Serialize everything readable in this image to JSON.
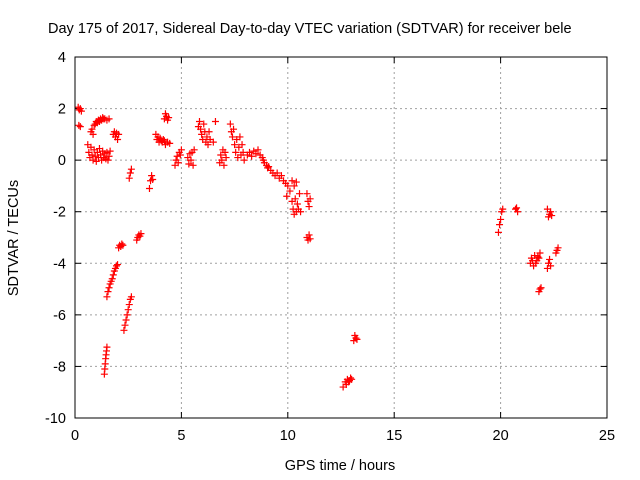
{
  "chart_data": {
    "type": "scatter",
    "title": "Day 175 of 2017, Sidereal Day-to-day VTEC variation (SDTVAR) for receiver bele",
    "xlabel": "GPS time / hours",
    "ylabel": "SDTVAR / TECUs",
    "xlim": [
      0,
      25
    ],
    "ylim": [
      -10,
      4
    ],
    "xticks": [
      0,
      5,
      10,
      15,
      20,
      25
    ],
    "yticks": [
      -10,
      -8,
      -6,
      -4,
      -2,
      0,
      2,
      4
    ],
    "grid": true,
    "marker": "+",
    "color": "#ff0000",
    "series": [
      {
        "name": "SDTVAR",
        "points": [
          [
            0.15,
            2.05
          ],
          [
            0.2,
            1.95
          ],
          [
            0.25,
            2.0
          ],
          [
            0.3,
            1.9
          ],
          [
            0.18,
            1.35
          ],
          [
            0.25,
            1.3
          ],
          [
            0.6,
            0.6
          ],
          [
            0.65,
            0.3
          ],
          [
            0.7,
            0.1
          ],
          [
            0.75,
            0.5
          ],
          [
            0.8,
            0.2
          ],
          [
            0.85,
            0.0
          ],
          [
            0.9,
            0.4
          ],
          [
            0.95,
            0.15
          ],
          [
            1.0,
            -0.05
          ],
          [
            1.05,
            0.3
          ],
          [
            1.1,
            0.1
          ],
          [
            1.15,
            0.45
          ],
          [
            1.2,
            0.2
          ],
          [
            1.25,
            0.0
          ],
          [
            1.3,
            0.35
          ],
          [
            1.35,
            0.1
          ],
          [
            1.4,
            0.25
          ],
          [
            1.45,
            0.05
          ],
          [
            1.5,
            0.3
          ],
          [
            1.55,
            0.0
          ],
          [
            1.6,
            0.15
          ],
          [
            1.65,
            0.35
          ],
          [
            0.75,
            1.1
          ],
          [
            0.8,
            1.2
          ],
          [
            0.85,
            1.0
          ],
          [
            0.9,
            1.35
          ],
          [
            0.95,
            1.4
          ],
          [
            1.0,
            1.5
          ],
          [
            1.05,
            1.45
          ],
          [
            1.1,
            1.55
          ],
          [
            1.15,
            1.5
          ],
          [
            1.2,
            1.6
          ],
          [
            1.25,
            1.55
          ],
          [
            1.3,
            1.65
          ],
          [
            1.35,
            1.6
          ],
          [
            1.4,
            1.6
          ],
          [
            1.5,
            1.55
          ],
          [
            1.6,
            1.6
          ],
          [
            1.38,
            -8.3
          ],
          [
            1.4,
            -8.1
          ],
          [
            1.42,
            -7.9
          ],
          [
            1.44,
            -7.7
          ],
          [
            1.46,
            -7.55
          ],
          [
            1.48,
            -7.4
          ],
          [
            1.5,
            -7.25
          ],
          [
            1.5,
            -5.3
          ],
          [
            1.55,
            -5.1
          ],
          [
            1.6,
            -4.95
          ],
          [
            1.65,
            -4.8
          ],
          [
            1.7,
            -4.7
          ],
          [
            1.75,
            -4.6
          ],
          [
            1.8,
            -4.45
          ],
          [
            1.85,
            -4.3
          ],
          [
            1.9,
            -4.2
          ],
          [
            1.95,
            -4.1
          ],
          [
            2.0,
            -4.05
          ],
          [
            1.8,
            1.0
          ],
          [
            1.85,
            1.1
          ],
          [
            1.9,
            0.9
          ],
          [
            1.95,
            1.05
          ],
          [
            2.0,
            0.8
          ],
          [
            2.05,
            1.0
          ],
          [
            2.05,
            -3.4
          ],
          [
            2.1,
            -3.3
          ],
          [
            2.15,
            -3.35
          ],
          [
            2.2,
            -3.25
          ],
          [
            2.25,
            -3.3
          ],
          [
            2.3,
            -6.6
          ],
          [
            2.35,
            -6.4
          ],
          [
            2.4,
            -6.2
          ],
          [
            2.45,
            -6.0
          ],
          [
            2.5,
            -5.8
          ],
          [
            2.55,
            -5.6
          ],
          [
            2.6,
            -5.4
          ],
          [
            2.65,
            -5.3
          ],
          [
            2.55,
            -0.7
          ],
          [
            2.6,
            -0.5
          ],
          [
            2.65,
            -0.35
          ],
          [
            2.9,
            -3.1
          ],
          [
            2.95,
            -3.0
          ],
          [
            3.0,
            -2.9
          ],
          [
            3.05,
            -2.95
          ],
          [
            3.1,
            -2.85
          ],
          [
            3.5,
            -1.1
          ],
          [
            3.55,
            -0.8
          ],
          [
            3.6,
            -0.6
          ],
          [
            3.65,
            -0.75
          ],
          [
            3.8,
            1.0
          ],
          [
            3.85,
            0.8
          ],
          [
            3.9,
            0.9
          ],
          [
            3.95,
            0.7
          ],
          [
            4.0,
            0.85
          ],
          [
            4.05,
            0.75
          ],
          [
            4.1,
            0.7
          ],
          [
            4.15,
            0.8
          ],
          [
            4.2,
            0.75
          ],
          [
            4.25,
            0.6
          ],
          [
            4.35,
            0.7
          ],
          [
            4.45,
            0.65
          ],
          [
            4.2,
            1.6
          ],
          [
            4.25,
            1.8
          ],
          [
            4.3,
            1.7
          ],
          [
            4.35,
            1.55
          ],
          [
            4.4,
            1.65
          ],
          [
            4.7,
            -0.2
          ],
          [
            4.75,
            0.0
          ],
          [
            4.8,
            0.15
          ],
          [
            4.85,
            -0.1
          ],
          [
            4.9,
            0.3
          ],
          [
            4.95,
            0.2
          ],
          [
            5.0,
            0.4
          ],
          [
            5.3,
            0.1
          ],
          [
            5.35,
            -0.15
          ],
          [
            5.4,
            0.25
          ],
          [
            5.45,
            0.0
          ],
          [
            5.5,
            0.3
          ],
          [
            5.55,
            -0.2
          ],
          [
            5.6,
            0.4
          ],
          [
            5.8,
            1.3
          ],
          [
            5.85,
            1.5
          ],
          [
            5.9,
            1.2
          ],
          [
            5.95,
            1.0
          ],
          [
            6.0,
            0.8
          ],
          [
            6.05,
            1.4
          ],
          [
            6.1,
            1.1
          ],
          [
            6.15,
            0.7
          ],
          [
            6.2,
            0.9
          ],
          [
            6.25,
            0.6
          ],
          [
            6.3,
            1.1
          ],
          [
            6.35,
            0.8
          ],
          [
            6.5,
            0.7
          ],
          [
            6.6,
            1.5
          ],
          [
            6.8,
            -0.1
          ],
          [
            6.85,
            0.2
          ],
          [
            6.9,
            0.0
          ],
          [
            6.95,
            0.4
          ],
          [
            7.0,
            -0.2
          ],
          [
            7.05,
            0.3
          ],
          [
            7.1,
            0.1
          ],
          [
            7.3,
            1.4
          ],
          [
            7.35,
            1.1
          ],
          [
            7.4,
            0.9
          ],
          [
            7.45,
            1.2
          ],
          [
            7.5,
            0.6
          ],
          [
            7.55,
            0.3
          ],
          [
            7.6,
            0.8
          ],
          [
            7.65,
            0.1
          ],
          [
            7.7,
            0.5
          ],
          [
            7.75,
            0.9
          ],
          [
            7.8,
            0.2
          ],
          [
            7.85,
            0.6
          ],
          [
            7.9,
            0.3
          ],
          [
            7.95,
            0.0
          ],
          [
            8.1,
            0.2
          ],
          [
            8.2,
            0.3
          ],
          [
            8.3,
            0.15
          ],
          [
            8.4,
            0.35
          ],
          [
            8.5,
            0.25
          ],
          [
            8.6,
            0.4
          ],
          [
            8.7,
            0.2
          ],
          [
            8.8,
            0.1
          ],
          [
            8.85,
            0.0
          ],
          [
            8.9,
            -0.1
          ],
          [
            9.0,
            -0.2
          ],
          [
            9.05,
            -0.3
          ],
          [
            9.1,
            -0.25
          ],
          [
            9.2,
            -0.4
          ],
          [
            9.3,
            -0.5
          ],
          [
            9.4,
            -0.6
          ],
          [
            9.5,
            -0.5
          ],
          [
            9.6,
            -0.7
          ],
          [
            9.7,
            -0.6
          ],
          [
            9.8,
            -0.8
          ],
          [
            9.9,
            -0.9
          ],
          [
            9.95,
            -1.4
          ],
          [
            10.0,
            -1.0
          ],
          [
            10.1,
            -1.2
          ],
          [
            10.2,
            -1.6
          ],
          [
            10.25,
            -1.9
          ],
          [
            10.3,
            -2.1
          ],
          [
            10.35,
            -1.5
          ],
          [
            10.4,
            -2.0
          ],
          [
            10.45,
            -1.7
          ],
          [
            10.5,
            -1.9
          ],
          [
            10.55,
            -1.3
          ],
          [
            10.6,
            -2.0
          ],
          [
            10.2,
            -0.8
          ],
          [
            10.3,
            -1.0
          ],
          [
            10.4,
            -0.85
          ],
          [
            10.9,
            -1.3
          ],
          [
            10.95,
            -1.6
          ],
          [
            11.0,
            -1.8
          ],
          [
            11.05,
            -1.5
          ],
          [
            10.9,
            -3.0
          ],
          [
            10.95,
            -3.1
          ],
          [
            11.0,
            -2.9
          ],
          [
            11.05,
            -3.05
          ],
          [
            12.6,
            -8.8
          ],
          [
            12.7,
            -8.6
          ],
          [
            12.75,
            -8.7
          ],
          [
            12.8,
            -8.5
          ],
          [
            12.85,
            -8.6
          ],
          [
            12.9,
            -8.55
          ],
          [
            12.95,
            -8.45
          ],
          [
            13.0,
            -8.5
          ],
          [
            13.1,
            -7.0
          ],
          [
            13.15,
            -6.8
          ],
          [
            13.2,
            -6.9
          ],
          [
            13.25,
            -6.95
          ],
          [
            19.9,
            -2.8
          ],
          [
            19.95,
            -2.5
          ],
          [
            20.0,
            -2.3
          ],
          [
            20.05,
            -2.0
          ],
          [
            20.1,
            -1.9
          ],
          [
            20.7,
            -1.9
          ],
          [
            20.75,
            -1.85
          ],
          [
            20.8,
            -2.0
          ],
          [
            21.4,
            -4.0
          ],
          [
            21.45,
            -3.8
          ],
          [
            21.5,
            -3.9
          ],
          [
            21.55,
            -4.1
          ],
          [
            21.6,
            -3.7
          ],
          [
            21.65,
            -4.0
          ],
          [
            21.7,
            -3.9
          ],
          [
            21.75,
            -3.75
          ],
          [
            21.8,
            -3.8
          ],
          [
            21.85,
            -3.6
          ],
          [
            21.8,
            -5.1
          ],
          [
            21.85,
            -5.0
          ],
          [
            21.9,
            -4.95
          ],
          [
            22.2,
            -1.9
          ],
          [
            22.25,
            -2.2
          ],
          [
            22.3,
            -2.1
          ],
          [
            22.35,
            -2.0
          ],
          [
            22.4,
            -2.15
          ],
          [
            22.2,
            -4.2
          ],
          [
            22.25,
            -4.0
          ],
          [
            22.3,
            -3.85
          ],
          [
            22.35,
            -4.1
          ],
          [
            22.6,
            -3.6
          ],
          [
            22.65,
            -3.5
          ],
          [
            22.7,
            -3.4
          ]
        ]
      }
    ]
  }
}
